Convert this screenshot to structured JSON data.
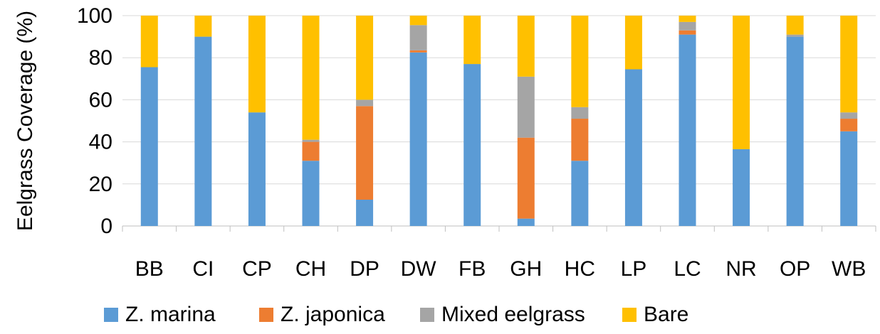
{
  "chart_data": {
    "type": "bar",
    "stacked": true,
    "title": "",
    "xlabel": "",
    "ylabel": "Eelgrass Coverage (%)",
    "ylim": [
      0,
      100
    ],
    "yticks": [
      "0",
      "20",
      "40",
      "60",
      "80",
      "100"
    ],
    "grid": "horizontal",
    "legend_position": "bottom",
    "categories": [
      "BB",
      "CI",
      "CP",
      "CH",
      "DP",
      "DW",
      "FB",
      "GH",
      "HC",
      "LP",
      "LC",
      "NR",
      "OP",
      "WB"
    ],
    "series": [
      {
        "name": "Z. marina",
        "color": "#5B9BD5",
        "values": [
          75.5,
          90,
          54,
          31,
          12.5,
          82.5,
          77,
          3.5,
          31,
          74.5,
          91,
          36.5,
          90,
          45
        ]
      },
      {
        "name": "Z. japonica",
        "color": "#ED7D31",
        "values": [
          0,
          0,
          0,
          9,
          44.5,
          1,
          0,
          38.5,
          20,
          0,
          2,
          0,
          0,
          6
        ]
      },
      {
        "name": "Mixed eelgrass",
        "color": "#A5A5A5",
        "values": [
          0,
          0,
          0,
          1,
          3,
          12,
          0,
          29,
          5.5,
          0,
          4,
          0,
          1,
          3
        ]
      },
      {
        "name": "Bare",
        "color": "#FFC000",
        "values": [
          24.5,
          10,
          46,
          59,
          40,
          4.5,
          23,
          29,
          43.5,
          25.5,
          3,
          63.5,
          9,
          46
        ]
      }
    ]
  }
}
